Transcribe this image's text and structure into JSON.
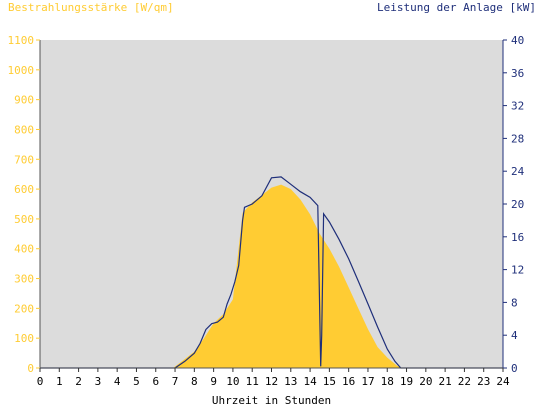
{
  "chart_data": {
    "type": "area",
    "title": "",
    "xlabel": "Uhrzeit in Stunden",
    "x_ticks": [
      "0",
      "1",
      "2",
      "3",
      "4",
      "5",
      "6",
      "7",
      "8",
      "9",
      "10",
      "11",
      "12",
      "13",
      "14",
      "15",
      "16",
      "17",
      "18",
      "19",
      "20",
      "21",
      "22",
      "23",
      "24"
    ],
    "xlim": [
      0,
      24
    ],
    "grid": false,
    "left_axis": {
      "label": "Bestrahlungsstärke [W/qm]",
      "ylim": [
        0,
        1100
      ],
      "ticks": [
        "0",
        "100",
        "200",
        "300",
        "400",
        "500",
        "600",
        "700",
        "800",
        "900",
        "1000",
        "1100"
      ]
    },
    "right_axis": {
      "label": "Leistung der Anlage [kW]",
      "ylim": [
        0,
        40
      ],
      "ticks": [
        "0",
        "4",
        "8",
        "12",
        "16",
        "20",
        "24",
        "28",
        "32",
        "36",
        "40"
      ]
    },
    "series": [
      {
        "axis": "left",
        "x": [
          0,
          6.9,
          7.5,
          8.0,
          8.5,
          9.0,
          9.5,
          10.0,
          10.5,
          11.0,
          11.5,
          12.0,
          12.5,
          13.0,
          13.5,
          14.0,
          14.5,
          15.0,
          15.5,
          16.0,
          16.5,
          17.0,
          17.5,
          18.0,
          18.5,
          18.8,
          24
        ],
        "y": [
          0,
          0,
          30,
          55,
          100,
          150,
          180,
          230,
          520,
          555,
          580,
          605,
          615,
          600,
          565,
          515,
          450,
          400,
          340,
          270,
          200,
          130,
          70,
          35,
          8,
          0,
          0
        ]
      },
      {
        "axis": "right",
        "x": [
          0,
          7.0,
          7.5,
          8.0,
          8.3,
          8.6,
          8.9,
          9.2,
          9.5,
          9.7,
          9.9,
          10.1,
          10.3,
          10.5,
          10.6,
          11.0,
          11.5,
          12.0,
          12.5,
          13.0,
          13.5,
          14.0,
          14.4,
          14.55,
          14.6,
          14.7,
          15.0,
          15.5,
          16.0,
          16.5,
          17.0,
          17.5,
          18.0,
          18.4,
          18.7,
          24
        ],
        "y": [
          0,
          0,
          0.8,
          1.8,
          3.0,
          4.7,
          5.4,
          5.6,
          6.2,
          7.8,
          9.0,
          10.5,
          12.5,
          18.0,
          19.6,
          20.0,
          21.0,
          23.2,
          23.3,
          22.4,
          21.5,
          20.8,
          19.8,
          0.2,
          4.0,
          18.8,
          17.8,
          15.7,
          13.3,
          10.6,
          7.8,
          5.0,
          2.3,
          0.8,
          0,
          0
        ]
      }
    ],
    "colors": {
      "irradiance_fill": "#ffcc33",
      "irradiance_axis": "#ffcc33",
      "power_line": "#1f2f7a",
      "power_axis": "#1f2f7a",
      "plot_background": "#dcdcdc"
    }
  }
}
